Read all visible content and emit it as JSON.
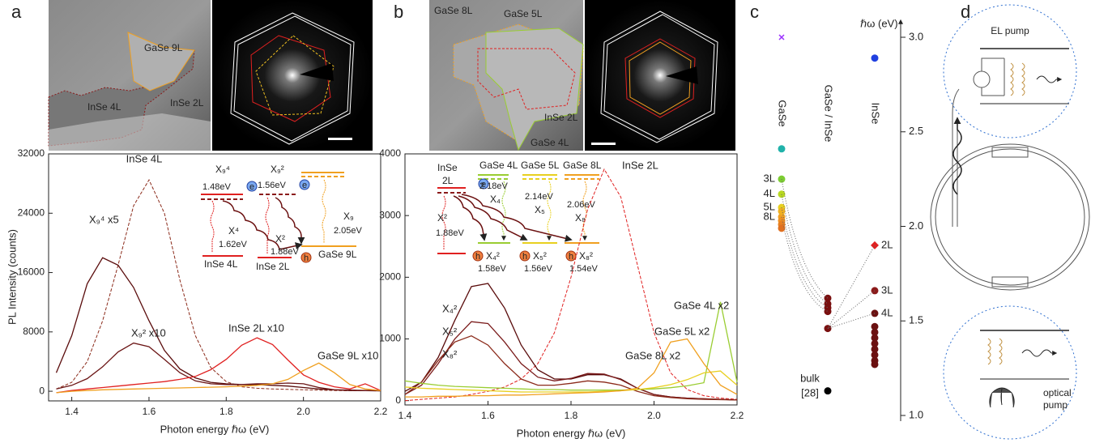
{
  "panel_labels": [
    "a",
    "b",
    "c",
    "d"
  ],
  "images_a": {
    "afm_labels": [
      "GaSe 9L",
      "InSe 4L",
      "InSe 2L"
    ]
  },
  "images_b": {
    "afm_labels": [
      "GaSe 8L",
      "GaSe 5L",
      "InSe 2L",
      "GaSe 4L"
    ]
  },
  "inset_a": {
    "texts": [
      "X₉⁴",
      "1.48eV",
      "X₉²",
      "1.56eV",
      "X⁴",
      "1.62eV",
      "X²",
      "1.88eV",
      "X₉",
      "2.05eV",
      "InSe 4L",
      "InSe 2L",
      "GaSe 9L",
      "e",
      "h"
    ]
  },
  "inset_b": {
    "texts": [
      "InSe",
      "2L",
      "GaSe 4L",
      "GaSe 5L",
      "GaSe 8L",
      "2.18eV",
      "X₄",
      "2.14eV",
      "X₅",
      "2.06eV",
      "X₈",
      "X²",
      "1.88eV",
      "X₄²",
      "1.58eV",
      "X₅²",
      "1.56eV",
      "X₈²",
      "1.54eV",
      "e",
      "h"
    ]
  },
  "chart_data": [
    {
      "type": "line",
      "ylabel": "PL Intensity (counts)",
      "xlabel": "Photon energy ℏω (eV)",
      "xlim": [
        1.34,
        2.2
      ],
      "ylim": [
        -1300,
        32000
      ],
      "xticks": [
        1.4,
        1.6,
        1.8,
        {
          "value": 2,
          "label": "2.0"
        },
        2.2
      ],
      "yticks": [
        0,
        8000,
        16000,
        24000,
        32000
      ],
      "x": [
        1.36,
        1.4,
        1.44,
        1.48,
        1.52,
        1.56,
        1.6,
        1.64,
        1.68,
        1.72,
        1.76,
        1.8,
        1.84,
        1.88,
        1.92,
        1.96,
        2.0,
        2.04,
        2.08,
        2.12,
        2.16,
        2.2
      ],
      "series": [
        {
          "name": "InSe 4L",
          "color": "#8b2a1a",
          "dash": true,
          "values": [
            300,
            1200,
            4000,
            9500,
            17000,
            25000,
            28500,
            24000,
            15000,
            7500,
            3200,
            1300,
            600,
            400,
            300,
            250,
            200,
            150,
            100,
            80,
            60,
            50
          ]
        },
        {
          "name": "X₉⁴ x5",
          "color": "#5a0c0c",
          "dash": false,
          "values": [
            2500,
            7500,
            14500,
            18000,
            17000,
            14000,
            9500,
            5500,
            3000,
            1800,
            1200,
            1000,
            900,
            900,
            800,
            700,
            500,
            300,
            200,
            150,
            100,
            80
          ]
        },
        {
          "name": "X₉² x10",
          "color": "#6b1515",
          "dash": false,
          "values": [
            300,
            800,
            1700,
            3300,
            5300,
            6500,
            6000,
            4300,
            2500,
            1400,
            1000,
            900,
            900,
            1000,
            1000,
            1100,
            1000,
            500,
            200,
            100,
            80,
            50
          ]
        },
        {
          "name": "InSe 2L x10",
          "color": "#e02020",
          "dash": false,
          "values": [
            -200,
            100,
            300,
            500,
            700,
            900,
            1100,
            1300,
            1600,
            2000,
            2900,
            4300,
            6200,
            7200,
            6300,
            4200,
            2200,
            1200,
            600,
            300,
            1000,
            100
          ]
        },
        {
          "name": "GaSe 9L x10",
          "color": "#f0a020",
          "dash": false,
          "values": [
            -200,
            0,
            100,
            200,
            250,
            300,
            350,
            400,
            450,
            500,
            550,
            600,
            700,
            800,
            1000,
            1600,
            2800,
            3800,
            2500,
            900,
            300,
            100
          ]
        }
      ]
    },
    {
      "type": "line",
      "xlabel": "Photon energy ℏω (eV)",
      "xlim": [
        1.4,
        2.2
      ],
      "ylim": [
        -70,
        4000
      ],
      "xticks": [
        1.4,
        1.6,
        1.8,
        {
          "value": 2,
          "label": "2.0"
        },
        2.2
      ],
      "yticks": [
        0,
        1000,
        2000,
        3000,
        4000
      ],
      "x": [
        1.4,
        1.44,
        1.48,
        1.52,
        1.56,
        1.6,
        1.64,
        1.68,
        1.72,
        1.76,
        1.8,
        1.84,
        1.88,
        1.92,
        1.96,
        2.0,
        2.04,
        2.08,
        2.12,
        2.16,
        2.2
      ],
      "series": [
        {
          "name": "InSe 2L",
          "color": "#e02020",
          "dash": true,
          "values": [
            0,
            20,
            40,
            60,
            100,
            150,
            220,
            350,
            600,
            1100,
            2000,
            3100,
            3750,
            3300,
            2200,
            1100,
            450,
            180,
            80,
            40,
            20
          ]
        },
        {
          "name": "X₄²",
          "color": "#5a0c0c",
          "dash": false,
          "values": [
            150,
            300,
            700,
            1300,
            1850,
            1900,
            1500,
            900,
            500,
            350,
            350,
            420,
            420,
            350,
            200,
            100,
            60,
            40,
            30,
            20,
            10
          ]
        },
        {
          "name": "X₅²",
          "color": "#7a1a1a",
          "dash": false,
          "values": [
            100,
            250,
            600,
            1000,
            1280,
            1250,
            950,
            600,
            380,
            320,
            360,
            440,
            430,
            340,
            200,
            100,
            60,
            40,
            30,
            20,
            10
          ]
        },
        {
          "name": "X₈²",
          "color": "#8b2a1a",
          "dash": false,
          "values": [
            100,
            300,
            650,
            950,
            1050,
            900,
            600,
            350,
            250,
            250,
            280,
            320,
            300,
            250,
            150,
            80,
            50,
            30,
            20,
            15,
            10
          ]
        },
        {
          "name": "GaSe 4L x2",
          "color": "#9acd32",
          "dash": false,
          "values": [
            320,
            280,
            250,
            230,
            220,
            210,
            200,
            190,
            180,
            180,
            170,
            170,
            170,
            170,
            180,
            190,
            210,
            240,
            290,
            1600,
            300
          ]
        },
        {
          "name": "GaSe 5L x2",
          "color": "#e8d020",
          "dash": false,
          "values": [
            220,
            200,
            190,
            180,
            170,
            160,
            150,
            140,
            140,
            140,
            140,
            140,
            150,
            160,
            180,
            210,
            260,
            340,
            450,
            480,
            250
          ]
        },
        {
          "name": "GaSe 8L x2",
          "color": "#f0a020",
          "dash": false,
          "values": [
            60,
            60,
            70,
            70,
            80,
            80,
            90,
            90,
            100,
            110,
            120,
            130,
            140,
            160,
            200,
            450,
            950,
            1000,
            600,
            250,
            100
          ]
        }
      ]
    },
    {
      "type": "scatter",
      "ylabel": "ℏω (eV)",
      "ylim": [
        0.97,
        3.09
      ],
      "yticks": [
        {
          "value": 1,
          "label": "1.0"
        },
        1.5,
        {
          "value": 2,
          "label": "2.0"
        },
        2.5,
        {
          "value": 3,
          "label": "3.0"
        }
      ],
      "series": [
        {
          "name": "GaSe",
          "values": [
            3.0,
            2.41,
            2.25,
            2.17,
            2.1,
            2.05,
            2.08,
            2.03,
            2.01,
            1.99
          ],
          "colors": [
            "#9b30ff",
            "#20b2aa",
            "#7ccd32",
            "#b8d820",
            "#e8d020",
            "#f0a020",
            "#f0b020",
            "#f09020",
            "#e88020",
            "#e07020"
          ],
          "markers": [
            "x",
            "o",
            "o",
            "o",
            "o",
            "o",
            "o",
            "o",
            "o",
            "o"
          ],
          "labels": [
            null,
            null,
            "3L",
            "4L",
            "5L",
            "8L",
            null,
            null,
            null,
            null
          ]
        },
        {
          "name": "GaSe / InSe",
          "values": [
            1.62,
            1.59,
            1.57,
            1.55,
            1.46
          ],
          "colors": [
            "#7a1010",
            "#7a1010",
            "#7a1010",
            "#7a1010",
            "#7a1010"
          ],
          "markers": [
            "o",
            "o",
            "o",
            "o",
            "o"
          ],
          "labels": [
            null,
            null,
            null,
            null,
            null
          ]
        },
        {
          "name": "InSe",
          "values": [
            2.89,
            1.9,
            1.66,
            1.54,
            1.47,
            1.44,
            1.41,
            1.38,
            1.35,
            1.32,
            1.29,
            1.27
          ],
          "colors": [
            "#2040e0",
            "#e02020",
            "#8b1a1a",
            "#6b1010",
            "#6b1010",
            "#6b1010",
            "#6b1010",
            "#6b1010",
            "#6b1010",
            "#6b1010",
            "#6b1010",
            "#6b1010"
          ],
          "markers": [
            "o",
            "d",
            "o",
            "o",
            "o",
            "o",
            "o",
            "o",
            "o",
            "o",
            "o",
            "o"
          ],
          "labels": [
            null,
            "2L",
            "3L",
            "4L",
            null,
            null,
            null,
            null,
            null,
            null,
            null,
            null
          ]
        },
        {
          "name": "bulk",
          "values": [
            1.13
          ],
          "colors": [
            "#000000"
          ],
          "markers": [
            "o"
          ],
          "labels": [
            null
          ]
        }
      ],
      "annotations": [
        "[28]"
      ]
    }
  ],
  "diagram_d": {
    "top_label": "EL pump",
    "bottom_label": [
      "optical",
      "pump"
    ]
  }
}
